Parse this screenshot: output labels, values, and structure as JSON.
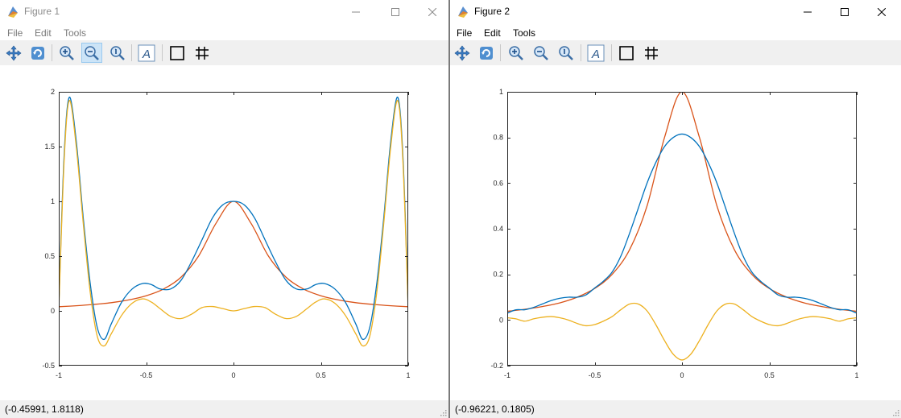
{
  "windows": [
    {
      "title": "Figure 1",
      "menu": [
        "File",
        "Edit",
        "Tools"
      ],
      "status": "(-0.45991, 1.8118)",
      "toolbar": [
        "pan-icon",
        "rotate-icon",
        "zoom-in-icon",
        "zoom-out-icon",
        "zoom-reset-icon",
        "text-annotation-icon",
        "box-toggle-icon",
        "grid-toggle-icon"
      ]
    },
    {
      "title": "Figure 2",
      "menu": [
        "File",
        "Edit",
        "Tools"
      ],
      "status": "(-0.96221, 0.1805)",
      "toolbar": [
        "pan-icon",
        "rotate-icon",
        "zoom-in-icon",
        "zoom-out-icon",
        "zoom-reset-icon",
        "text-annotation-icon",
        "box-toggle-icon",
        "grid-toggle-icon"
      ]
    }
  ],
  "colors": {
    "series_blue": "#0072bd",
    "series_orange": "#d95319",
    "series_yellow": "#edb120",
    "toolbar_bg": "#f0f0f0"
  },
  "chart_data": [
    {
      "type": "line",
      "xlim": [
        -1,
        1
      ],
      "ylim": [
        -0.5,
        2
      ],
      "xticks": [
        -1,
        -0.5,
        0,
        0.5,
        1
      ],
      "xtick_labels": [
        "-1",
        "-0.5",
        "0",
        "0.5",
        "1"
      ],
      "yticks": [
        -0.5,
        0,
        0.5,
        1,
        1.5,
        2
      ],
      "ytick_labels": [
        "-0.5",
        "0",
        "0.5",
        "1",
        "1.5",
        "2"
      ],
      "grid": false,
      "series": [
        {
          "color": "#d95319",
          "x": [
            -1,
            -0.9,
            -0.8,
            -0.7,
            -0.6,
            -0.5,
            -0.4,
            -0.3,
            -0.2,
            -0.1,
            0,
            0.1,
            0.2,
            0.3,
            0.4,
            0.5,
            0.6,
            0.7,
            0.8,
            0.9,
            1
          ],
          "values": [
            0.038,
            0.047,
            0.059,
            0.075,
            0.1,
            0.138,
            0.2,
            0.308,
            0.5,
            0.8,
            1,
            0.8,
            0.5,
            0.308,
            0.2,
            0.138,
            0.1,
            0.075,
            0.059,
            0.047,
            0.038
          ]
        },
        {
          "color": "#0072bd",
          "x": [
            -1,
            -0.97,
            -0.94,
            -0.9,
            -0.86,
            -0.82,
            -0.78,
            -0.74,
            -0.7,
            -0.64,
            -0.58,
            -0.52,
            -0.47,
            -0.42,
            -0.36,
            -0.3,
            -0.24,
            -0.18,
            -0.12,
            -0.06,
            0,
            0.06,
            0.12,
            0.18,
            0.24,
            0.3,
            0.36,
            0.42,
            0.47,
            0.52,
            0.58,
            0.64,
            0.7,
            0.74,
            0.78,
            0.82,
            0.86,
            0.9,
            0.94,
            0.97,
            1
          ],
          "values": [
            0.04,
            1.4,
            1.95,
            1.55,
            0.85,
            0.25,
            -0.15,
            -0.26,
            -0.12,
            0.08,
            0.2,
            0.25,
            0.24,
            0.2,
            0.2,
            0.28,
            0.45,
            0.65,
            0.85,
            0.97,
            1,
            0.97,
            0.85,
            0.65,
            0.45,
            0.28,
            0.2,
            0.2,
            0.24,
            0.25,
            0.2,
            0.08,
            -0.12,
            -0.26,
            -0.15,
            0.25,
            0.85,
            1.55,
            1.95,
            1.4,
            0.04
          ]
        },
        {
          "color": "#edb120",
          "x": [
            -1,
            -0.97,
            -0.94,
            -0.9,
            -0.86,
            -0.82,
            -0.78,
            -0.74,
            -0.7,
            -0.64,
            -0.58,
            -0.52,
            -0.47,
            -0.42,
            -0.36,
            -0.3,
            -0.24,
            -0.18,
            -0.12,
            -0.06,
            0,
            0.06,
            0.12,
            0.18,
            0.24,
            0.3,
            0.36,
            0.42,
            0.47,
            0.52,
            0.58,
            0.64,
            0.7,
            0.74,
            0.78,
            0.82,
            0.86,
            0.9,
            0.94,
            0.97,
            1
          ],
          "values": [
            0,
            1.35,
            1.92,
            1.5,
            0.8,
            0.17,
            -0.23,
            -0.32,
            -0.21,
            -0.04,
            0.07,
            0.11,
            0.08,
            0.02,
            -0.05,
            -0.07,
            -0.03,
            0.03,
            0.04,
            0.02,
            0,
            0.02,
            0.04,
            0.03,
            -0.03,
            -0.07,
            -0.05,
            0.02,
            0.08,
            0.11,
            0.07,
            -0.04,
            -0.21,
            -0.32,
            -0.23,
            0.17,
            0.8,
            1.5,
            1.92,
            1.35,
            0
          ]
        }
      ]
    },
    {
      "type": "line",
      "xlim": [
        -1,
        1
      ],
      "ylim": [
        -0.2,
        1
      ],
      "xticks": [
        -1,
        -0.5,
        0,
        0.5,
        1
      ],
      "xtick_labels": [
        "-1",
        "-0.5",
        "0",
        "0.5",
        "1"
      ],
      "yticks": [
        -0.2,
        0,
        0.2,
        0.4,
        0.6,
        0.8,
        1
      ],
      "ytick_labels": [
        "-0.2",
        "0",
        "0.2",
        "0.4",
        "0.6",
        "0.8",
        "1"
      ],
      "grid": false,
      "series": [
        {
          "color": "#d95319",
          "x": [
            -1,
            -0.9,
            -0.8,
            -0.7,
            -0.6,
            -0.5,
            -0.4,
            -0.3,
            -0.2,
            -0.1,
            0,
            0.1,
            0.2,
            0.3,
            0.4,
            0.5,
            0.6,
            0.7,
            0.8,
            0.9,
            1
          ],
          "values": [
            0.038,
            0.047,
            0.059,
            0.075,
            0.1,
            0.138,
            0.2,
            0.308,
            0.5,
            0.8,
            1,
            0.8,
            0.5,
            0.308,
            0.2,
            0.138,
            0.1,
            0.075,
            0.059,
            0.047,
            0.038
          ]
        },
        {
          "color": "#0072bd",
          "x": [
            -1,
            -0.95,
            -0.9,
            -0.85,
            -0.8,
            -0.75,
            -0.7,
            -0.65,
            -0.6,
            -0.55,
            -0.5,
            -0.45,
            -0.4,
            -0.35,
            -0.3,
            -0.25,
            -0.2,
            -0.15,
            -0.1,
            -0.05,
            0,
            0.05,
            0.1,
            0.15,
            0.2,
            0.25,
            0.3,
            0.35,
            0.4,
            0.45,
            0.5,
            0.55,
            0.6,
            0.65,
            0.7,
            0.75,
            0.8,
            0.85,
            0.9,
            0.95,
            1
          ],
          "values": [
            0.03,
            0.045,
            0.045,
            0.055,
            0.07,
            0.085,
            0.095,
            0.1,
            0.1,
            0.11,
            0.14,
            0.17,
            0.21,
            0.28,
            0.38,
            0.49,
            0.6,
            0.69,
            0.76,
            0.8,
            0.815,
            0.8,
            0.76,
            0.69,
            0.6,
            0.49,
            0.38,
            0.28,
            0.21,
            0.17,
            0.14,
            0.11,
            0.1,
            0.1,
            0.095,
            0.085,
            0.07,
            0.055,
            0.045,
            0.045,
            0.03
          ]
        },
        {
          "color": "#edb120",
          "x": [
            -1,
            -0.95,
            -0.9,
            -0.85,
            -0.8,
            -0.75,
            -0.7,
            -0.65,
            -0.6,
            -0.55,
            -0.5,
            -0.45,
            -0.4,
            -0.35,
            -0.3,
            -0.25,
            -0.2,
            -0.15,
            -0.1,
            -0.05,
            0,
            0.05,
            0.1,
            0.15,
            0.2,
            0.25,
            0.3,
            0.35,
            0.4,
            0.45,
            0.5,
            0.55,
            0.6,
            0.65,
            0.7,
            0.75,
            0.8,
            0.85,
            0.9,
            0.95,
            1
          ],
          "values": [
            0.01,
            0.005,
            -0.005,
            0.005,
            0.012,
            0.015,
            0.01,
            0,
            -0.015,
            -0.025,
            -0.02,
            -0.005,
            0.015,
            0.045,
            0.07,
            0.07,
            0.04,
            -0.02,
            -0.09,
            -0.15,
            -0.175,
            -0.15,
            -0.09,
            -0.02,
            0.04,
            0.07,
            0.07,
            0.045,
            0.015,
            -0.005,
            -0.02,
            -0.025,
            -0.015,
            0,
            0.01,
            0.015,
            0.012,
            0.005,
            -0.005,
            0.005,
            0.01
          ]
        }
      ]
    }
  ]
}
